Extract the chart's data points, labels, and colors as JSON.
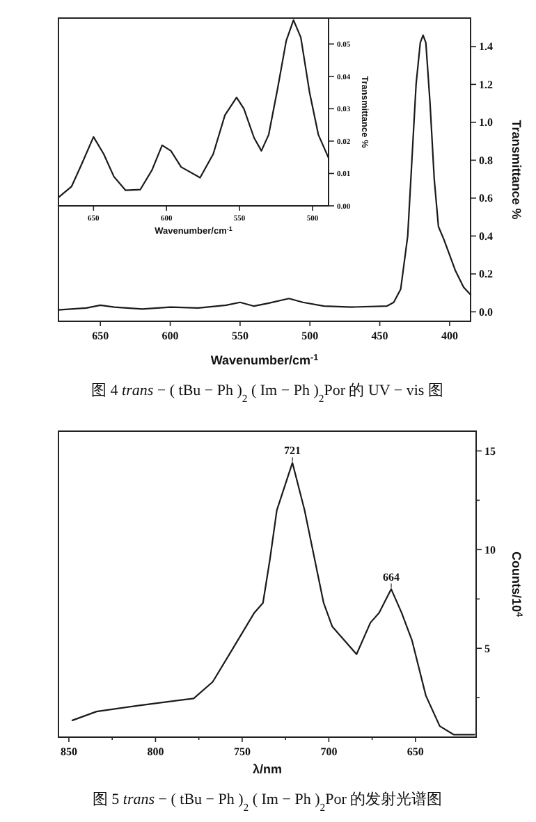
{
  "chart_data": [
    {
      "type": "line",
      "xlabel": "Wavenumber/cm$^{-1}$",
      "ylabel": "Transmittance %",
      "x": [
        680,
        660,
        650,
        640,
        620,
        600,
        580,
        560,
        550,
        540,
        530,
        515,
        505,
        490,
        470,
        445,
        440,
        435,
        430,
        427,
        424,
        421,
        419,
        417,
        414,
        411,
        408,
        404,
        400,
        396,
        390,
        385
      ],
      "values": [
        0.01,
        0.02,
        0.035,
        0.025,
        0.015,
        0.025,
        0.02,
        0.035,
        0.05,
        0.03,
        0.045,
        0.07,
        0.05,
        0.03,
        0.025,
        0.03,
        0.05,
        0.12,
        0.4,
        0.8,
        1.2,
        1.42,
        1.46,
        1.42,
        1.1,
        0.7,
        0.45,
        0.38,
        0.3,
        0.22,
        0.13,
        0.09
      ],
      "color": "#1a1a1a",
      "xlim": [
        680,
        385
      ],
      "ylim": [
        -0.05,
        1.55
      ],
      "xticks": [
        650,
        600,
        550,
        500,
        450,
        400
      ],
      "yticks": [
        {
          "value": 0,
          "label": "0.0"
        },
        {
          "value": 0.2,
          "label": "0.2"
        },
        {
          "value": 0.4,
          "label": "0.4"
        },
        {
          "value": 0.6,
          "label": "0.6"
        },
        {
          "value": 0.8,
          "label": "0.8"
        },
        {
          "value": 1.0,
          "label": "1.0"
        },
        {
          "value": 1.2,
          "label": "1.2"
        },
        {
          "value": 1.4,
          "label": "1.4"
        }
      ],
      "annotations": [
        "图 4 *trans* − ( tBu − Ph )$_{2}$ ( Im − Ph )$_{2}$Por 的 UV − vis 图"
      ]
    },
    {
      "type": "line",
      "xlabel": "Wavenumber/cm$^{-1}$",
      "ylabel": "Transmittance %",
      "x": [
        674,
        665,
        658,
        650,
        643,
        636,
        628,
        618,
        610,
        603,
        597,
        590,
        577,
        568,
        560,
        552,
        547,
        540,
        535,
        530,
        524,
        518,
        513,
        508,
        502,
        496,
        489
      ],
      "values": [
        0.0026,
        0.006,
        0.013,
        0.0213,
        0.016,
        0.009,
        0.0048,
        0.005,
        0.011,
        0.0187,
        0.017,
        0.012,
        0.0087,
        0.016,
        0.028,
        0.0335,
        0.03,
        0.021,
        0.017,
        0.022,
        0.036,
        0.051,
        0.0574,
        0.052,
        0.035,
        0.022,
        0.0148
      ],
      "color": "#1a1a1a",
      "xlim": [
        674,
        489
      ],
      "ylim": [
        0,
        0.058
      ],
      "xticks": [
        650,
        600,
        550,
        500
      ],
      "yticks": [
        {
          "value": 0,
          "label": "0.00"
        },
        {
          "value": 0.01,
          "label": "0.01"
        },
        {
          "value": 0.02,
          "label": "0.02"
        },
        {
          "value": 0.03,
          "label": "0.03"
        },
        {
          "value": 0.04,
          "label": "0.04"
        },
        {
          "value": 0.05,
          "label": "0.05"
        }
      ]
    },
    {
      "type": "line",
      "xlabel": "λ/nm",
      "ylabel": "Counts/10$^{4}$",
      "x": [
        848,
        834,
        810,
        778,
        767,
        756,
        743,
        738,
        734,
        730,
        721,
        714,
        703,
        698,
        684,
        676,
        671,
        664,
        658,
        652,
        644,
        636,
        628,
        616
      ],
      "values": [
        1.35,
        1.8,
        2.1,
        2.46,
        3.3,
        4.9,
        6.8,
        7.3,
        9.5,
        12.0,
        14.4,
        12.0,
        7.3,
        6.1,
        4.7,
        6.3,
        6.8,
        8.0,
        6.8,
        5.4,
        2.6,
        1.06,
        0.63,
        0.63
      ],
      "color": "#1a1a1a",
      "xlim": [
        856,
        615
      ],
      "ylim": [
        0.5,
        16
      ],
      "xticks": [
        850,
        {
          "value": 825,
          "label": null
        },
        800,
        {
          "value": 775,
          "label": null
        },
        750,
        {
          "value": 725,
          "label": null
        },
        700,
        {
          "value": 675,
          "label": null
        },
        650
      ],
      "yticks": [
        {
          "value": 2.5,
          "label": null
        },
        5,
        {
          "value": 7.5,
          "label": null
        },
        10,
        {
          "value": 12.5,
          "label": null
        },
        15
      ],
      "annotations": [
        "图 5 *trans* − ( tBu − Ph )$_{2}$ ( Im − Ph )$_{2}$Por 的发射光谱图",
        {
          "text": "721",
          "x": 721,
          "y": 14.4
        },
        {
          "text": "664",
          "x": 664,
          "y": 8.0
        }
      ]
    }
  ]
}
